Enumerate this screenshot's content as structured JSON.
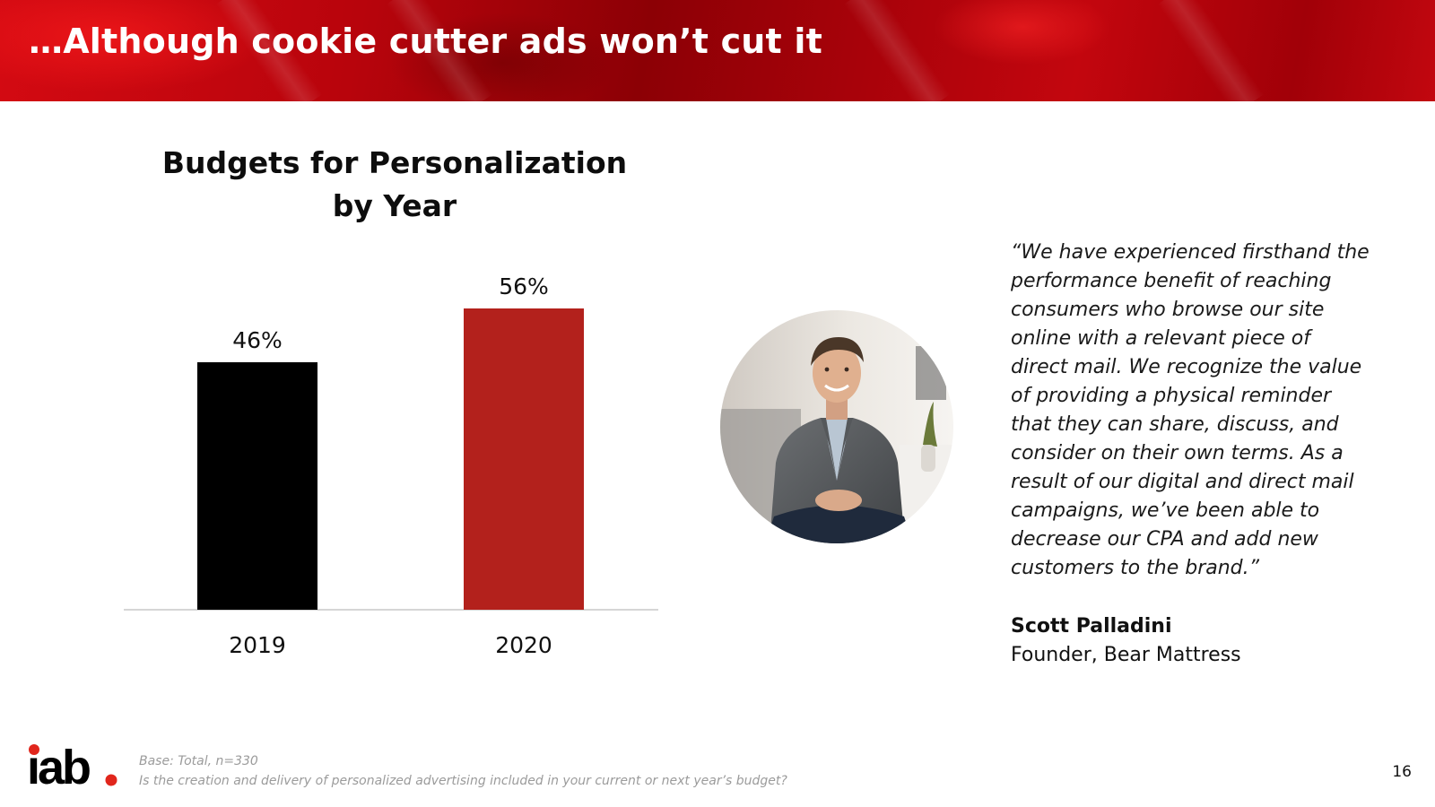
{
  "slide": {
    "title": "…Although cookie cutter ads won’t cut it",
    "page_number": "16"
  },
  "chart_data": {
    "type": "bar",
    "title_line1": "Budgets for Personalization",
    "title_line2": "by Year",
    "categories": [
      "2019",
      "2020"
    ],
    "values": [
      46,
      56
    ],
    "value_labels": [
      "46%",
      "56%"
    ],
    "ylim": [
      0,
      100
    ],
    "xlabel": "",
    "ylabel": "",
    "grid": false,
    "bar_colors": [
      "#000000",
      "#b3211c"
    ]
  },
  "testimonial": {
    "quote": "“We have experienced firsthand the performance benefit of reaching consumers who browse our site online with a relevant piece of direct mail. We recognize the value of providing a physical reminder that they can share, discuss, and consider on their own terms. As a result of our digital and direct mail campaigns, we’ve been able to decrease our CPA and add new customers to the brand.”",
    "author_name": "Scott Palladini",
    "author_title": "Founder, Bear Mattress"
  },
  "footer": {
    "base": "Base: Total, n=330",
    "question": "Is the creation and delivery of personalized advertising included in your current or next year’s budget?",
    "logo_text": "iab."
  },
  "colors": {
    "header_red": "#b8040c",
    "accent_red": "#b3211c",
    "logo_dot": "#e1261c"
  }
}
